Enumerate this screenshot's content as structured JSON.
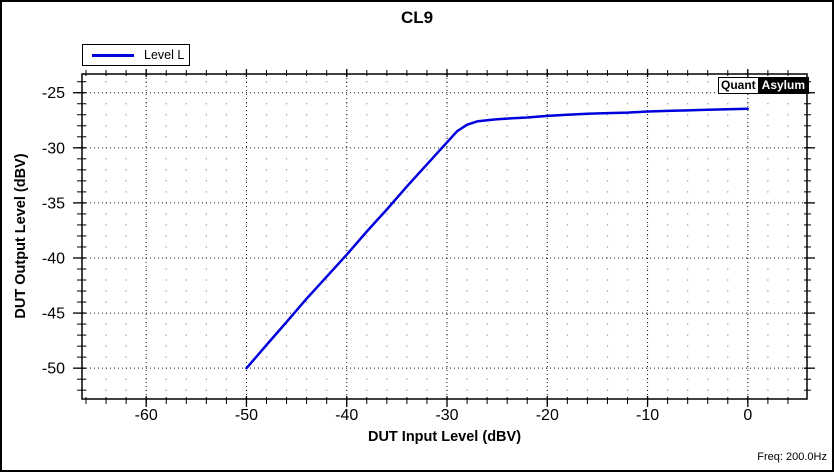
{
  "window": {
    "title": "CL9"
  },
  "watermark": {
    "part1": "Quant",
    "part2": "Asylum"
  },
  "footer": {
    "freq_label": "Freq: 200.0Hz"
  },
  "colors": {
    "background": "#ffffff",
    "border": "#000000",
    "curve": "#0000dd",
    "major_grid": "#1a1a1a",
    "minor_grid": "#909090",
    "text": "#000000"
  },
  "chart_data": {
    "type": "line",
    "title": "CL9",
    "xlabel": "DUT Input Level (dBV)",
    "ylabel": "DUT Output Level (dBV)",
    "xlim": [
      -66.4,
      5.9
    ],
    "ylim": [
      -52.8,
      -23.3
    ],
    "x_major_ticks": [
      -60,
      -50,
      -40,
      -30,
      -20,
      -10,
      0
    ],
    "x_minor_step": 2,
    "y_major_ticks": [
      -50,
      -45,
      -40,
      -35,
      -30,
      -25
    ],
    "y_minor_step": 1,
    "grid": "dotted major lines + gray minor dot lattice",
    "legend_position": "top-left",
    "series": [
      {
        "name": "Level L",
        "color": "#0000dd",
        "points": [
          [
            -50,
            -50.0
          ],
          [
            -48,
            -47.9
          ],
          [
            -46,
            -45.8
          ],
          [
            -44,
            -43.7
          ],
          [
            -42,
            -41.7
          ],
          [
            -40,
            -39.7
          ],
          [
            -38,
            -37.6
          ],
          [
            -36,
            -35.6
          ],
          [
            -34,
            -33.5
          ],
          [
            -32,
            -31.5
          ],
          [
            -31,
            -30.5
          ],
          [
            -30,
            -29.5
          ],
          [
            -29,
            -28.5
          ],
          [
            -28,
            -27.9
          ],
          [
            -27,
            -27.6
          ],
          [
            -26,
            -27.5
          ],
          [
            -25,
            -27.4
          ],
          [
            -24,
            -27.35
          ],
          [
            -22,
            -27.25
          ],
          [
            -20,
            -27.1
          ],
          [
            -18,
            -27.0
          ],
          [
            -16,
            -26.9
          ],
          [
            -14,
            -26.85
          ],
          [
            -12,
            -26.8
          ],
          [
            -10,
            -26.7
          ],
          [
            -8,
            -26.65
          ],
          [
            -6,
            -26.6
          ],
          [
            -4,
            -26.55
          ],
          [
            -2,
            -26.5
          ],
          [
            0,
            -26.45
          ]
        ]
      }
    ]
  }
}
